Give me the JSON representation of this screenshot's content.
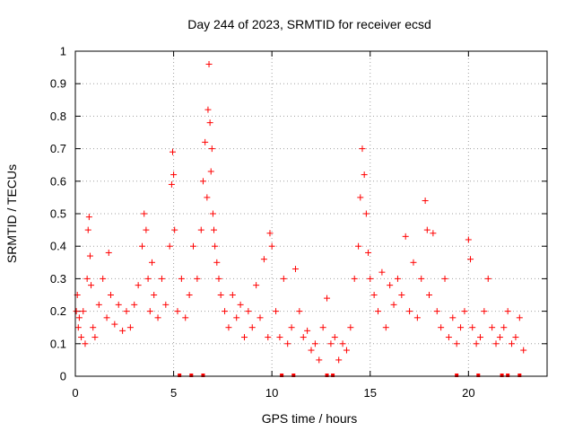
{
  "chart_data": {
    "type": "scatter",
    "title": "Day 244 of 2023, SRMTID for receiver ecsd",
    "xlabel": "GPS time / hours",
    "ylabel": "SRMTID / TECUs",
    "xlim": [
      0,
      24
    ],
    "ylim": [
      0,
      1
    ],
    "xticks": [
      0,
      5,
      10,
      15,
      20
    ],
    "yticks": [
      0,
      0.1,
      0.2,
      0.3,
      0.4,
      0.5,
      0.6,
      0.7,
      0.8,
      0.9,
      1
    ],
    "grid": true,
    "marker": "plus",
    "color": "#ff0000",
    "series": [
      {
        "name": "SRMTID",
        "x": [
          0.05,
          0.1,
          0.15,
          0.2,
          0.3,
          0.4,
          0.5,
          0.6,
          0.65,
          0.7,
          0.75,
          0.8,
          0.9,
          1.0,
          1.2,
          1.4,
          1.6,
          1.7,
          1.8,
          2.0,
          2.2,
          2.4,
          2.6,
          2.8,
          3.0,
          3.2,
          3.4,
          3.5,
          3.6,
          3.7,
          3.8,
          3.9,
          4.0,
          4.2,
          4.4,
          4.6,
          4.8,
          4.9,
          4.95,
          5.0,
          5.05,
          5.2,
          5.4,
          5.6,
          5.8,
          6.0,
          6.2,
          6.4,
          6.5,
          6.6,
          6.7,
          6.75,
          6.8,
          6.85,
          6.9,
          6.95,
          7.0,
          7.05,
          7.1,
          7.2,
          7.3,
          7.4,
          7.6,
          7.8,
          8.0,
          8.2,
          8.4,
          8.6,
          8.8,
          9.0,
          9.2,
          9.4,
          9.6,
          9.8,
          9.9,
          10.0,
          10.2,
          10.4,
          10.6,
          10.8,
          11.0,
          11.2,
          11.4,
          11.6,
          11.8,
          12.0,
          12.2,
          12.4,
          12.6,
          12.8,
          13.0,
          13.2,
          13.4,
          13.6,
          13.8,
          14.0,
          14.2,
          14.4,
          14.5,
          14.6,
          14.7,
          14.8,
          14.9,
          15.0,
          15.2,
          15.4,
          15.6,
          15.8,
          16.0,
          16.2,
          16.4,
          16.6,
          16.8,
          17.0,
          17.2,
          17.4,
          17.6,
          17.8,
          17.9,
          18.0,
          18.2,
          18.4,
          18.6,
          18.8,
          19.0,
          19.2,
          19.4,
          19.6,
          19.8,
          20.0,
          20.1,
          20.2,
          20.4,
          20.6,
          20.8,
          21.0,
          21.2,
          21.4,
          21.6,
          21.8,
          22.0,
          22.2,
          22.4,
          22.6,
          22.8
        ],
        "y": [
          0.2,
          0.25,
          0.15,
          0.18,
          0.12,
          0.2,
          0.1,
          0.3,
          0.45,
          0.49,
          0.37,
          0.28,
          0.15,
          0.12,
          0.22,
          0.3,
          0.18,
          0.38,
          0.25,
          0.16,
          0.22,
          0.14,
          0.2,
          0.15,
          0.22,
          0.28,
          0.4,
          0.5,
          0.45,
          0.3,
          0.2,
          0.35,
          0.25,
          0.18,
          0.3,
          0.22,
          0.4,
          0.59,
          0.69,
          0.62,
          0.45,
          0.2,
          0.3,
          0.18,
          0.25,
          0.4,
          0.3,
          0.45,
          0.6,
          0.72,
          0.55,
          0.82,
          0.96,
          0.78,
          0.63,
          0.7,
          0.5,
          0.45,
          0.4,
          0.35,
          0.3,
          0.25,
          0.2,
          0.15,
          0.25,
          0.18,
          0.22,
          0.12,
          0.2,
          0.15,
          0.28,
          0.18,
          0.36,
          0.12,
          0.44,
          0.4,
          0.2,
          0.12,
          0.3,
          0.1,
          0.15,
          0.33,
          0.2,
          0.12,
          0.14,
          0.08,
          0.1,
          0.05,
          0.15,
          0.24,
          0.1,
          0.12,
          0.05,
          0.1,
          0.08,
          0.15,
          0.3,
          0.4,
          0.55,
          0.7,
          0.62,
          0.5,
          0.38,
          0.3,
          0.25,
          0.2,
          0.32,
          0.15,
          0.28,
          0.22,
          0.3,
          0.25,
          0.43,
          0.2,
          0.35,
          0.18,
          0.3,
          0.54,
          0.45,
          0.25,
          0.44,
          0.2,
          0.15,
          0.3,
          0.12,
          0.18,
          0.1,
          0.15,
          0.2,
          0.42,
          0.36,
          0.15,
          0.1,
          0.12,
          0.2,
          0.3,
          0.15,
          0.1,
          0.12,
          0.15,
          0.2,
          0.1,
          0.12,
          0.18,
          0.08
        ],
        "zero_markers_x": [
          5.3,
          5.9,
          6.5,
          10.5,
          11.1,
          12.8,
          13.1,
          19.4,
          20.5,
          21.7,
          22.0,
          22.6
        ]
      }
    ]
  }
}
